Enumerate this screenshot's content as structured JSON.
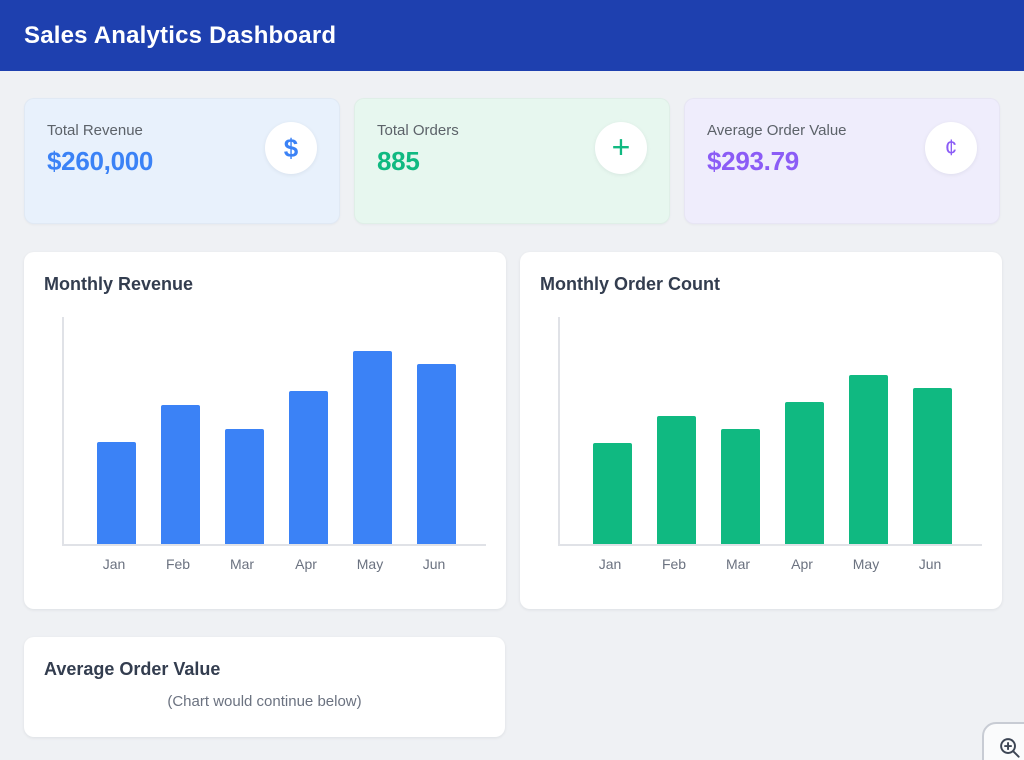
{
  "header": {
    "title": "Sales Analytics Dashboard",
    "bg_color": "#1e40af"
  },
  "stats": [
    {
      "label": "Total Revenue",
      "value": "$260,000",
      "icon": "dollar-icon",
      "icon_glyph": "$",
      "accent": "#3b82f6",
      "bg": "#e8f1fc"
    },
    {
      "label": "Total Orders",
      "value": "885",
      "icon": "plus-icon",
      "icon_glyph": "+",
      "accent": "#10b981",
      "bg": "#e7f7ef"
    },
    {
      "label": "Average Order Value",
      "value": "$293.79",
      "icon": "cent-icon",
      "icon_glyph": "¢",
      "accent": "#8b5cf6",
      "bg": "#efedfc"
    }
  ],
  "chart_data": [
    {
      "id": "monthly-revenue",
      "type": "bar",
      "title": "Monthly Revenue",
      "categories": [
        "Jan",
        "Feb",
        "Mar",
        "Apr",
        "May",
        "Jun"
      ],
      "values": [
        30000,
        41000,
        34000,
        45000,
        57000,
        53000
      ],
      "bar_color": "#3b82f6",
      "xlabel": "",
      "ylabel": "",
      "ylim": [
        0,
        67500
      ],
      "grid": false,
      "legend": false
    },
    {
      "id": "monthly-order-count",
      "type": "bar",
      "title": "Monthly Order Count",
      "categories": [
        "Jan",
        "Feb",
        "Mar",
        "Apr",
        "May",
        "Jun"
      ],
      "values": [
        110,
        140,
        125,
        155,
        185,
        170
      ],
      "bar_color": "#10b981",
      "xlabel": "",
      "ylabel": "",
      "ylim": [
        0,
        250
      ],
      "grid": false,
      "legend": false
    }
  ],
  "bottom_card": {
    "title": "Average Order Value",
    "note": "(Chart would continue below)"
  },
  "zoom_button": {
    "icon": "zoom-in-icon"
  }
}
